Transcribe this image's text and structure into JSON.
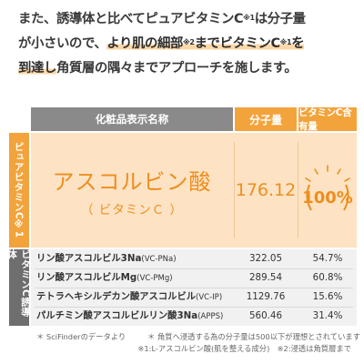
{
  "intro": {
    "line1": "また、誘導体と比べてピュアビタミンC",
    "sup1": "※1",
    "line1_tail": "は分子量",
    "line2_a": "が小さいので、",
    "line2_hl": "より肌の細部",
    "sup2": "※2",
    "line2_hl2": "までビタミンC",
    "sup3": "※1",
    "line2_hl3": "を",
    "line3_hl": "到達し",
    "line3_tail": "角質層の隅々までアプローチを施します。"
  },
  "table": {
    "header_name": "化粧品表示名称",
    "header_mw": "分子量",
    "header_vc": "ビタミンC含有量",
    "side_pure": "ピュアビタミンC※1",
    "side_deriv": "ビタミンC誘導体",
    "pure": {
      "name": "アスコルビン酸",
      "sub": "（ ビタミンＣ ）",
      "mw": "176.12",
      "vc": "100%"
    },
    "rows": [
      {
        "name": "リン酸アスコルビル3Na",
        "code": "(VC-PNa)",
        "mw": "322.05",
        "vc": "54.7%"
      },
      {
        "name": "リン酸アスコルビルMg",
        "code": "(VC-PMg)",
        "mw": "289.54",
        "vc": "60.8%"
      },
      {
        "name": "テトラヘキシルデカン酸アスコルビル",
        "code": "(VC-IP)",
        "mw": "1129.76",
        "vc": "15.6%"
      },
      {
        "name": "パルチミン酸アスコルビルリン酸3Na",
        "code": "(APPS)",
        "mw": "560.46",
        "vc": "31.4%"
      }
    ]
  },
  "notes": {
    "n1": "＊ SciFinderのデータより",
    "n2": "＊ 角質へ浸透する為の分子量は500以下が理想とされています",
    "n3": "※1:L-アスコルビン酸(肌を整える成分)　※2:浸透は角質層まで"
  },
  "colors": {
    "accent": "#f3a33b",
    "accent_text": "#ee8e1e",
    "pure_bg": "#fde3c4",
    "header_gray": "#8a8a8a"
  }
}
